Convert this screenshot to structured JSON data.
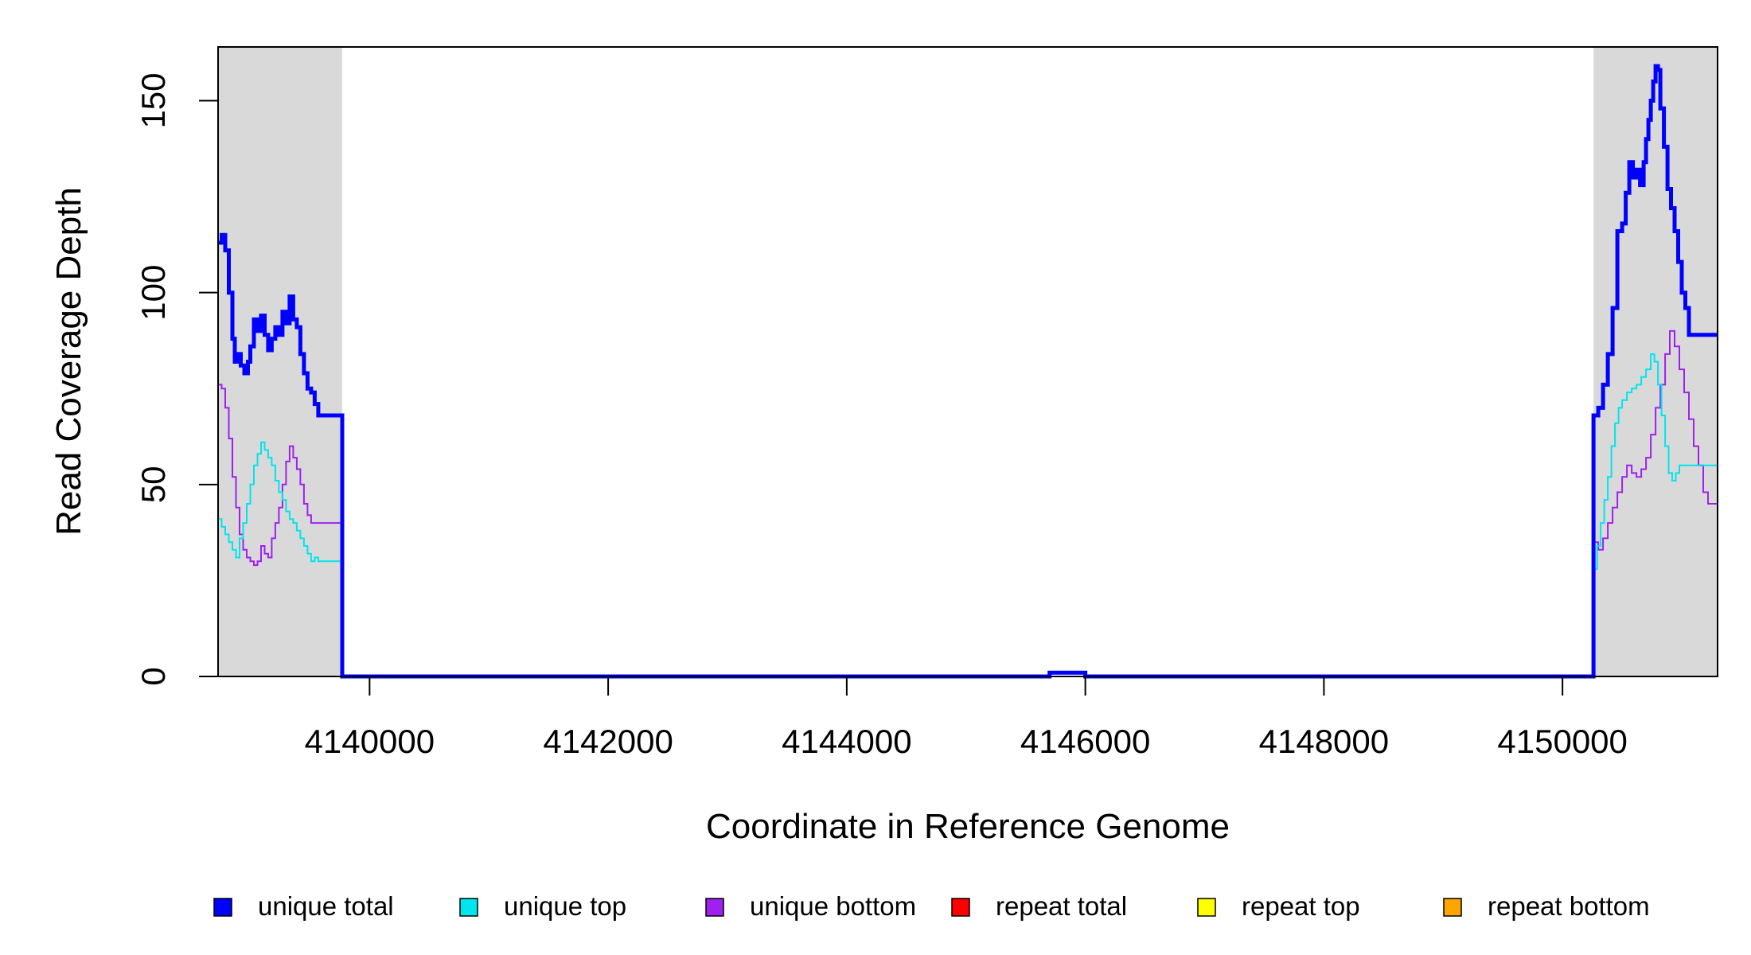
{
  "chart_data": {
    "type": "line",
    "title": "",
    "xlabel": "Coordinate in Reference Genome",
    "ylabel": "Read Coverage Depth",
    "xlim": [
      4138730,
      4151300
    ],
    "ylim": [
      0,
      164
    ],
    "x_ticks": [
      4140000,
      4142000,
      4144000,
      4146000,
      4148000,
      4150000
    ],
    "x_tick_labels": [
      "4140000",
      "4142000",
      "4144000",
      "4146000",
      "4148000",
      "4150000"
    ],
    "y_ticks": [
      0,
      50,
      100,
      150
    ],
    "y_tick_labels": [
      "0",
      "50",
      "100",
      "150"
    ],
    "grid": false,
    "legend_position": "bottom",
    "shaded_regions": [
      {
        "x0": 4138730,
        "x1": 4139770,
        "color": "#d9d9d9"
      },
      {
        "x0": 4150260,
        "x1": 4151300,
        "color": "#d9d9d9"
      }
    ],
    "series": [
      {
        "name": "unique total",
        "color": "#0000ff",
        "stroke": 5,
        "x": [
          4138730,
          4138760,
          4138790,
          4138820,
          4138850,
          4138870,
          4138890,
          4138920,
          4138950,
          4138980,
          4139000,
          4139030,
          4139060,
          4139090,
          4139120,
          4139150,
          4139180,
          4139210,
          4139240,
          4139270,
          4139300,
          4139330,
          4139360,
          4139390,
          4139420,
          4139450,
          4139480,
          4139510,
          4139540,
          4139570,
          4139600,
          4139630,
          4139660,
          4139690,
          4139720,
          4139750,
          4139770,
          4139771,
          4140000,
          4142000,
          4144000,
          4145700,
          4145900,
          4146000,
          4148000,
          4150259,
          4150260,
          4150300,
          4150340,
          4150380,
          4150420,
          4150460,
          4150500,
          4150530,
          4150560,
          4150590,
          4150620,
          4150650,
          4150680,
          4150700,
          4150720,
          4150740,
          4150760,
          4150780,
          4150800,
          4150820,
          4150850,
          4150880,
          4150910,
          4150940,
          4150970,
          4151000,
          4151030,
          4151060,
          4151090,
          4151120,
          4151150,
          4151180,
          4151210,
          4151240,
          4151270,
          4151300
        ],
        "y": [
          113,
          115,
          111,
          100,
          88,
          82,
          84,
          81,
          79,
          82,
          86,
          93,
          90,
          94,
          89,
          85,
          88,
          91,
          89,
          95,
          92,
          99,
          93,
          91,
          84,
          79,
          75,
          74,
          71,
          68,
          68,
          68,
          68,
          68,
          68,
          68,
          68,
          0,
          0,
          0,
          0,
          1,
          1,
          0,
          0,
          0,
          68,
          70,
          76,
          84,
          96,
          116,
          118,
          126,
          134,
          130,
          132,
          128,
          134,
          140,
          145,
          150,
          155,
          159,
          158,
          148,
          138,
          127,
          122,
          116,
          108,
          100,
          96,
          89,
          89,
          89,
          89,
          89,
          89,
          89,
          89,
          89
        ]
      },
      {
        "name": "unique top",
        "color": "#00e5ee",
        "stroke": 2,
        "x": [
          4138730,
          4138760,
          4138790,
          4138820,
          4138850,
          4138880,
          4138910,
          4138940,
          4138970,
          4139000,
          4139030,
          4139060,
          4139090,
          4139120,
          4139150,
          4139180,
          4139210,
          4139240,
          4139270,
          4139300,
          4139330,
          4139360,
          4139390,
          4139420,
          4139450,
          4139480,
          4139510,
          4139540,
          4139570,
          4139600,
          4139630,
          4139660,
          4139690,
          4139720,
          4139750,
          4139770,
          4139771,
          4150259,
          4150260,
          4150290,
          4150320,
          4150350,
          4150380,
          4150410,
          4150440,
          4150470,
          4150500,
          4150540,
          4150580,
          4150620,
          4150660,
          4150700,
          4150740,
          4150770,
          4150800,
          4150830,
          4150860,
          4150890,
          4150920,
          4150950,
          4150980,
          4151010,
          4151040,
          4151070,
          4151100,
          4151130,
          4151160,
          4151190,
          4151220,
          4151250,
          4151280,
          4151300
        ],
        "y": [
          41,
          39,
          37,
          35,
          33,
          31,
          36,
          40,
          45,
          50,
          55,
          58,
          61,
          59,
          57,
          55,
          51,
          48,
          46,
          43,
          41,
          40,
          38,
          36,
          34,
          32,
          30,
          31,
          30,
          30,
          30,
          30,
          30,
          30,
          30,
          30,
          0,
          0,
          28,
          34,
          40,
          46,
          52,
          60,
          66,
          70,
          72,
          74,
          75,
          76,
          78,
          80,
          84,
          82,
          76,
          68,
          60,
          53,
          51,
          53,
          55,
          55,
          55,
          55,
          55,
          55,
          55,
          55,
          55,
          55,
          55,
          55
        ]
      },
      {
        "name": "unique bottom",
        "color": "#a020f0",
        "stroke": 2,
        "x": [
          4138730,
          4138760,
          4138790,
          4138820,
          4138850,
          4138880,
          4138910,
          4138940,
          4138970,
          4139000,
          4139030,
          4139060,
          4139090,
          4139120,
          4139150,
          4139180,
          4139210,
          4139240,
          4139270,
          4139300,
          4139330,
          4139360,
          4139390,
          4139420,
          4139450,
          4139480,
          4139510,
          4139540,
          4139570,
          4139600,
          4139630,
          4139660,
          4139690,
          4139720,
          4139750,
          4139770,
          4139771,
          4140000,
          4142000,
          4144000,
          4145700,
          4145900,
          4146000,
          4148000,
          4150259,
          4150260,
          4150300,
          4150340,
          4150380,
          4150420,
          4150460,
          4150500,
          4150540,
          4150580,
          4150620,
          4150660,
          4150700,
          4150740,
          4150780,
          4150820,
          4150860,
          4150900,
          4150940,
          4150980,
          4151020,
          4151060,
          4151100,
          4151140,
          4151180,
          4151220,
          4151260,
          4151300
        ],
        "y": [
          76,
          75,
          70,
          62,
          52,
          44,
          37,
          33,
          31,
          30,
          29,
          30,
          34,
          32,
          31,
          36,
          40,
          44,
          50,
          56,
          60,
          57,
          54,
          50,
          45,
          42,
          40,
          40,
          40,
          40,
          40,
          40,
          40,
          40,
          40,
          40,
          0,
          0,
          0,
          0,
          1,
          1,
          0,
          0,
          0,
          35,
          33,
          36,
          40,
          44,
          48,
          52,
          55,
          53,
          52,
          54,
          57,
          63,
          70,
          76,
          84,
          90,
          86,
          80,
          74,
          67,
          60,
          55,
          48,
          45,
          45,
          45
        ]
      },
      {
        "name": "repeat total",
        "color": "#ff0000",
        "stroke": 2,
        "x": [
          4138730,
          4151300
        ],
        "y": [
          0,
          0
        ]
      },
      {
        "name": "repeat top",
        "color": "#ffff00",
        "stroke": 2,
        "x": [
          4138730,
          4151300
        ],
        "y": [
          0,
          0
        ]
      },
      {
        "name": "repeat bottom",
        "color": "#ffa500",
        "stroke": 2,
        "x": [
          4138730,
          4151300
        ],
        "y": [
          0,
          0
        ]
      }
    ],
    "legend": [
      {
        "label": "unique total",
        "color": "#0000ff"
      },
      {
        "label": "unique top",
        "color": "#00e5ee"
      },
      {
        "label": "unique bottom",
        "color": "#a020f0"
      },
      {
        "label": "repeat total",
        "color": "#ff0000"
      },
      {
        "label": "repeat top",
        "color": "#ffff00"
      },
      {
        "label": "repeat bottom",
        "color": "#ffa500"
      }
    ]
  }
}
